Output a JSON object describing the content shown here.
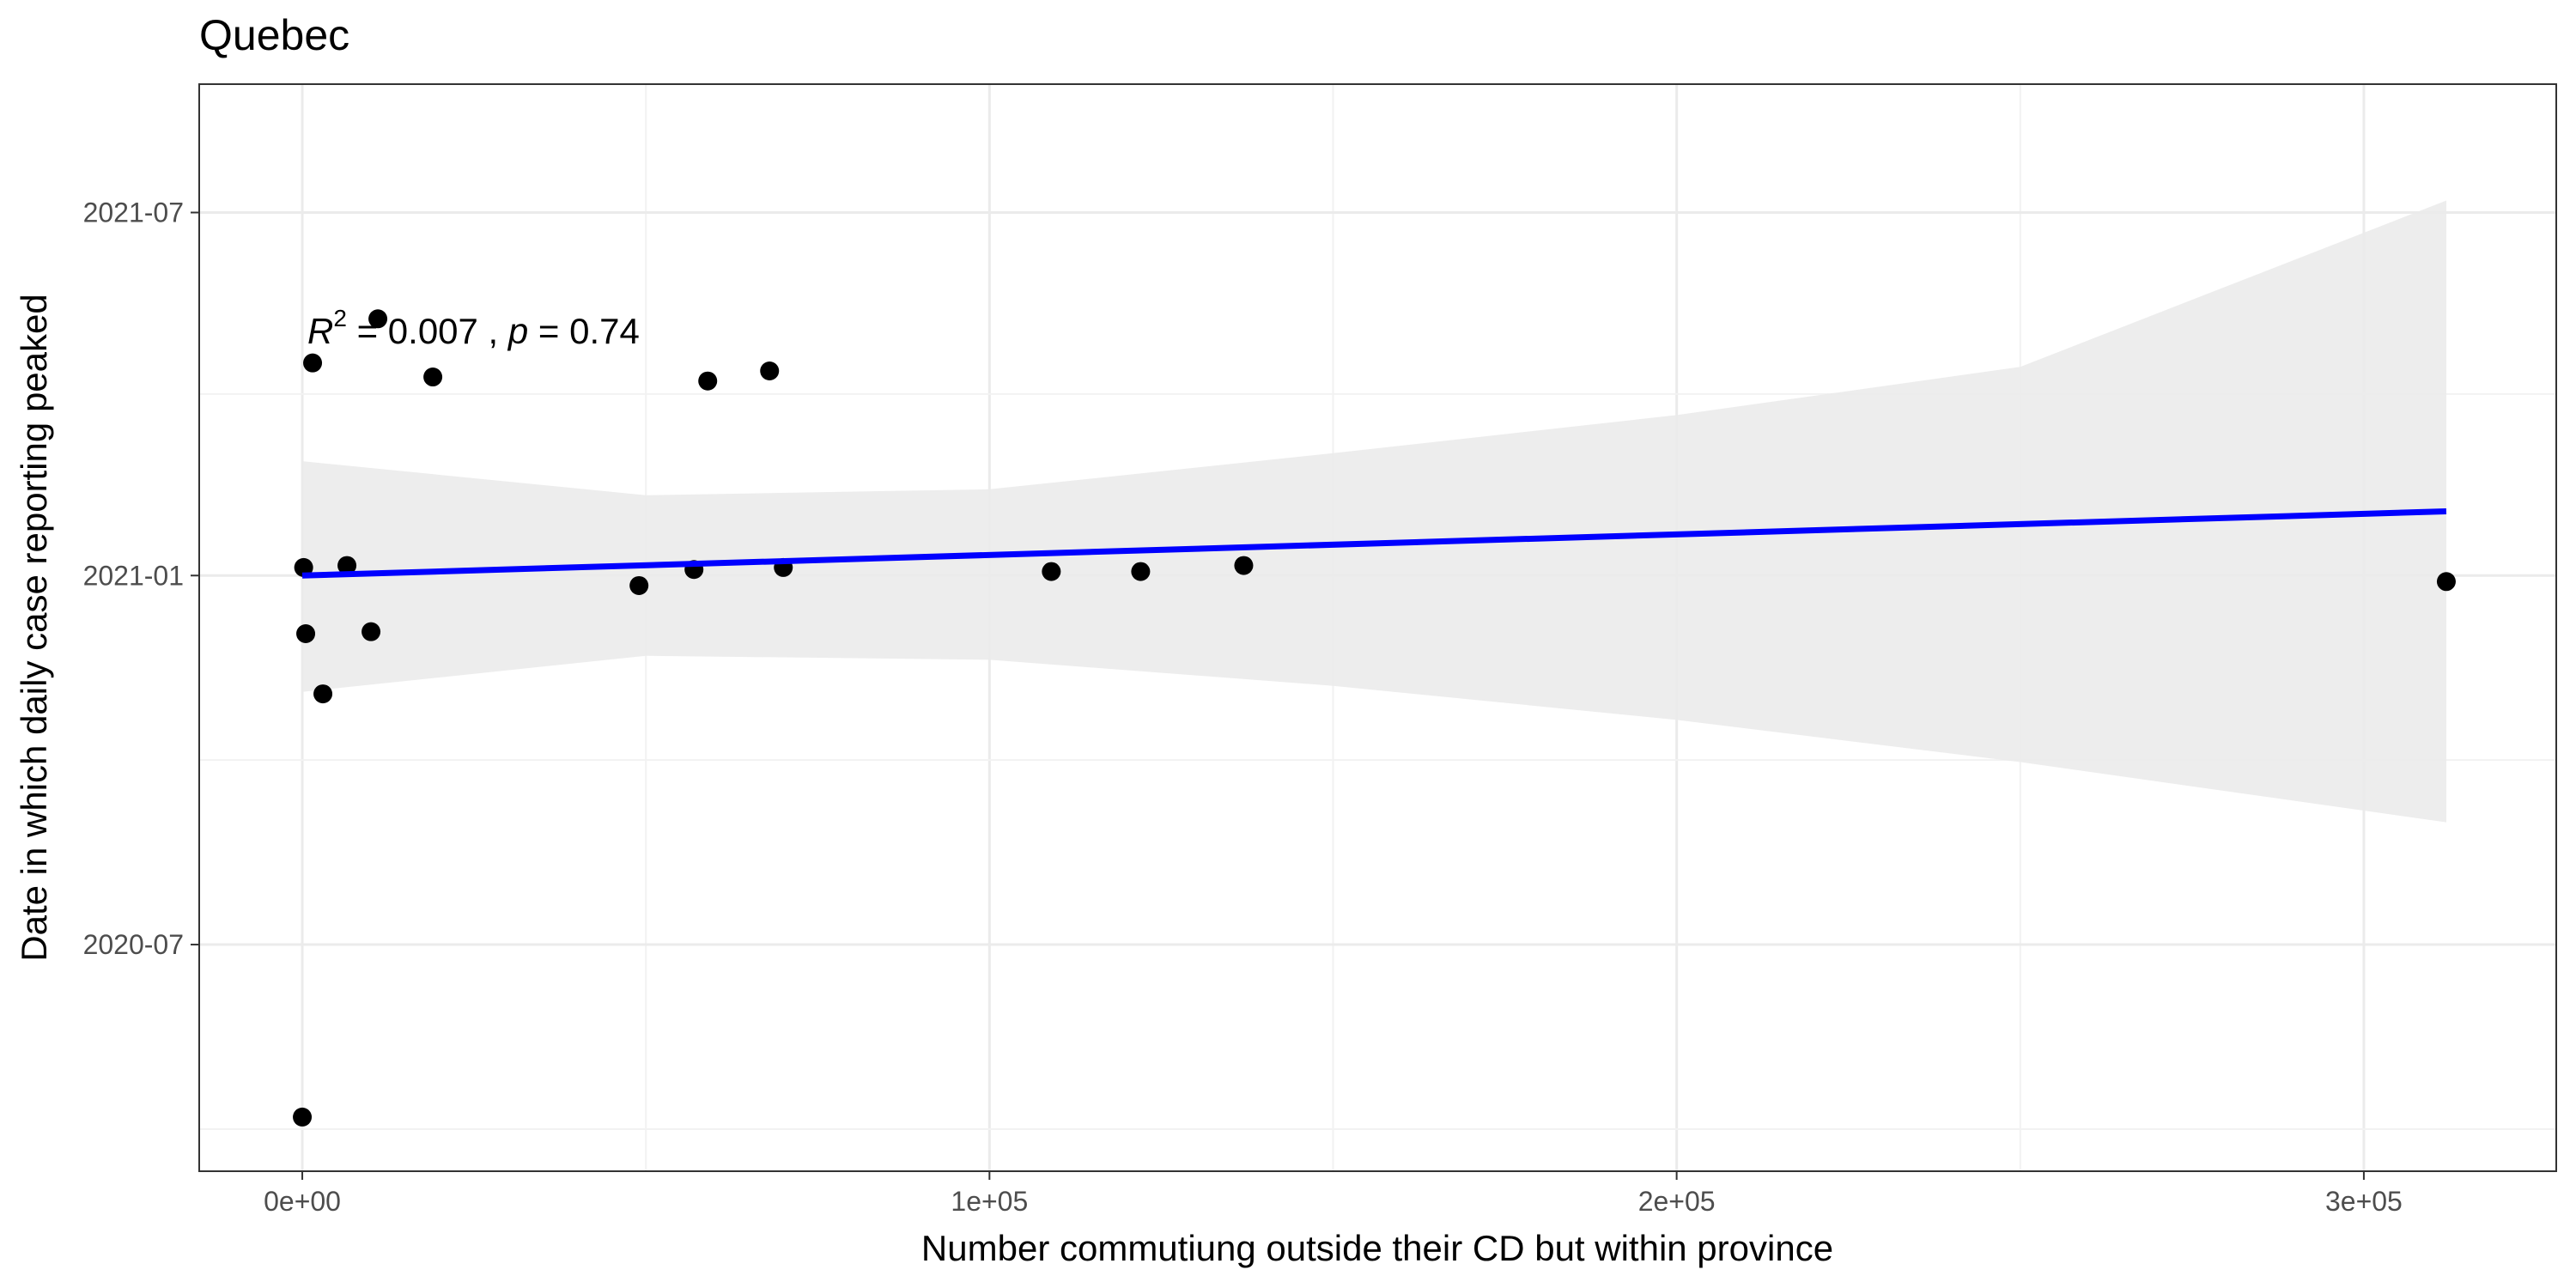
{
  "chart_data": {
    "type": "scatter",
    "title": "Quebec",
    "xlabel": "Number commutiung outside their CD but within province",
    "ylabel": "Date in which daily case reporting peaked",
    "x_scale": "linear",
    "y_scale": "date",
    "xlim": [
      -15000,
      328000
    ],
    "ylim": [
      "2020-03-10",
      "2021-09-03"
    ],
    "x_ticks": [
      {
        "value": 0,
        "label": "0e+00"
      },
      {
        "value": 100000,
        "label": "1e+05"
      },
      {
        "value": 200000,
        "label": "2e+05"
      },
      {
        "value": 300000,
        "label": "3e+05"
      }
    ],
    "y_ticks": [
      {
        "value": "2020-07-01",
        "label": "2020-07"
      },
      {
        "value": "2021-01-01",
        "label": "2021-01"
      },
      {
        "value": "2021-07-01",
        "label": "2021-07"
      }
    ],
    "grid": true,
    "points": [
      {
        "x": 0,
        "y": "2020-04-06"
      },
      {
        "x": 200,
        "y": "2021-01-05"
      },
      {
        "x": 500,
        "y": "2020-12-03"
      },
      {
        "x": 1500,
        "y": "2021-04-17"
      },
      {
        "x": 3000,
        "y": "2020-11-03"
      },
      {
        "x": 6500,
        "y": "2021-01-06"
      },
      {
        "x": 10000,
        "y": "2020-12-04"
      },
      {
        "x": 11000,
        "y": "2021-05-09"
      },
      {
        "x": 19000,
        "y": "2021-04-10"
      },
      {
        "x": 49000,
        "y": "2020-12-27"
      },
      {
        "x": 57000,
        "y": "2021-01-04"
      },
      {
        "x": 59000,
        "y": "2021-04-08"
      },
      {
        "x": 68000,
        "y": "2021-04-13"
      },
      {
        "x": 70000,
        "y": "2021-01-05"
      },
      {
        "x": 109000,
        "y": "2021-01-03"
      },
      {
        "x": 122000,
        "y": "2021-01-03"
      },
      {
        "x": 137000,
        "y": "2021-01-06"
      },
      {
        "x": 312000,
        "y": "2020-12-29"
      }
    ],
    "regression_line": {
      "color": "#0000ff",
      "x": [
        0,
        312000
      ],
      "y": [
        "2021-01-01",
        "2021-02-02"
      ]
    },
    "confidence_band": {
      "color": "#ebebeb",
      "x": [
        0,
        50000,
        100000,
        150000,
        200000,
        250000,
        312000
      ],
      "lower": [
        "2020-11-04",
        "2020-11-22",
        "2020-11-20",
        "2020-11-07",
        "2020-10-21",
        "2020-09-30",
        "2020-08-31"
      ],
      "upper": [
        "2021-02-27",
        "2021-02-10",
        "2021-02-13",
        "2021-03-03",
        "2021-03-22",
        "2021-04-15",
        "2021-07-07"
      ]
    },
    "annotation": {
      "r_symbol": "R",
      "r_superscript": "2",
      "r_value_text": " = 0.007 , ",
      "p_symbol": "p",
      "p_value_text": " = 0.74"
    }
  }
}
